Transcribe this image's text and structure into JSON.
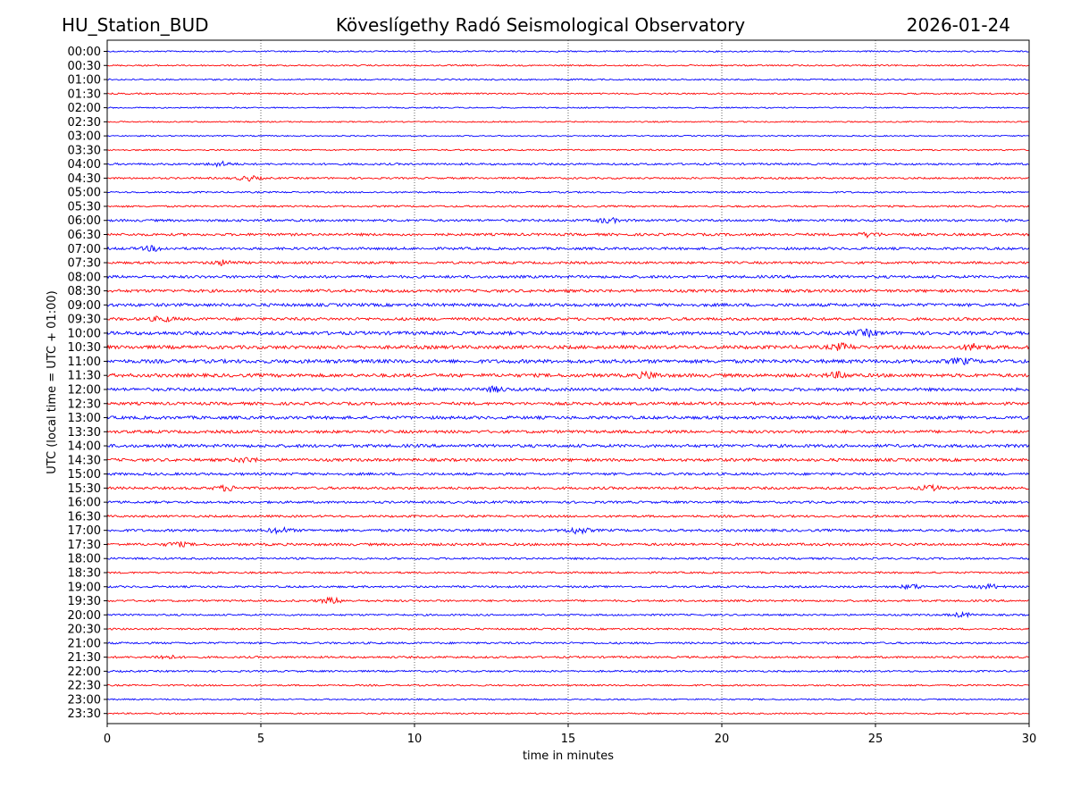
{
  "header": {
    "station": "HU_Station_BUD",
    "observatory": "Köveslígethy Radó Seismological Observatory",
    "date": "2026-01-24"
  },
  "chart_data": {
    "type": "line",
    "title": "Köveslígethy Radó Seismological Observatory",
    "xlabel": "time in minutes",
    "ylabel": "UTC (local time = UTC + 01:00)",
    "xlim": [
      0,
      30
    ],
    "xticks": [
      "0",
      "5",
      "10",
      "15",
      "20",
      "25",
      "30"
    ],
    "grid": "vertical dotted lines at 5-minute intervals",
    "colors": {
      "even": "#0000ff",
      "odd": "#ff0000"
    },
    "rows": [
      "00:00",
      "00:30",
      "01:00",
      "01:30",
      "02:00",
      "02:30",
      "03:00",
      "03:30",
      "04:00",
      "04:30",
      "05:00",
      "05:30",
      "06:00",
      "06:30",
      "07:00",
      "07:30",
      "08:00",
      "08:30",
      "09:00",
      "09:30",
      "10:00",
      "10:30",
      "11:00",
      "11:30",
      "12:00",
      "12:30",
      "13:00",
      "13:30",
      "14:00",
      "14:30",
      "15:00",
      "15:30",
      "16:00",
      "16:30",
      "17:00",
      "17:30",
      "18:00",
      "18:30",
      "19:00",
      "19:30",
      "20:00",
      "20:30",
      "21:00",
      "21:30",
      "22:00",
      "22:30",
      "23:00",
      "23:30"
    ],
    "noise_level": [
      0.8,
      0.8,
      0.8,
      0.8,
      0.7,
      0.7,
      0.7,
      0.8,
      1.1,
      1.0,
      0.9,
      1.0,
      1.3,
      1.4,
      1.4,
      1.3,
      1.5,
      1.6,
      1.7,
      1.6,
      1.9,
      1.9,
      2.0,
      1.9,
      1.7,
      1.6,
      1.7,
      1.6,
      1.7,
      1.6,
      1.4,
      1.4,
      1.3,
      1.2,
      1.4,
      1.4,
      1.1,
      1.0,
      1.1,
      1.1,
      1.0,
      1.0,
      1.1,
      1.1,
      1.0,
      0.9,
      0.8,
      0.8
    ],
    "bursts": [
      {
        "row": "04:00",
        "minute": 3.7,
        "amp": 2.2
      },
      {
        "row": "04:30",
        "minute": 4.6,
        "amp": 2.4
      },
      {
        "row": "06:00",
        "minute": 16.3,
        "amp": 2.3
      },
      {
        "row": "06:30",
        "minute": 24.8,
        "amp": 2.0
      },
      {
        "row": "07:00",
        "minute": 1.5,
        "amp": 2.2
      },
      {
        "row": "07:30",
        "minute": 3.8,
        "amp": 2.4
      },
      {
        "row": "09:30",
        "minute": 1.8,
        "amp": 2.4
      },
      {
        "row": "10:00",
        "minute": 24.7,
        "amp": 2.8
      },
      {
        "row": "10:30",
        "minute": 23.9,
        "amp": 3.0
      },
      {
        "row": "10:30",
        "minute": 28.2,
        "amp": 3.2
      },
      {
        "row": "11:00",
        "minute": 27.8,
        "amp": 2.6
      },
      {
        "row": "11:30",
        "minute": 17.6,
        "amp": 2.8
      },
      {
        "row": "11:30",
        "minute": 23.8,
        "amp": 2.6
      },
      {
        "row": "12:00",
        "minute": 12.6,
        "amp": 2.2
      },
      {
        "row": "14:30",
        "minute": 4.5,
        "amp": 2.1
      },
      {
        "row": "15:30",
        "minute": 3.9,
        "amp": 2.5
      },
      {
        "row": "15:30",
        "minute": 26.8,
        "amp": 2.2
      },
      {
        "row": "17:00",
        "minute": 5.6,
        "amp": 2.6
      },
      {
        "row": "17:00",
        "minute": 15.3,
        "amp": 3.0
      },
      {
        "row": "17:30",
        "minute": 2.3,
        "amp": 2.0
      },
      {
        "row": "19:00",
        "minute": 26.2,
        "amp": 2.2
      },
      {
        "row": "19:00",
        "minute": 28.7,
        "amp": 2.2
      },
      {
        "row": "19:30",
        "minute": 7.3,
        "amp": 2.9
      },
      {
        "row": "20:00",
        "minute": 27.8,
        "amp": 2.0
      },
      {
        "row": "21:30",
        "minute": 1.9,
        "amp": 2.0
      }
    ]
  }
}
